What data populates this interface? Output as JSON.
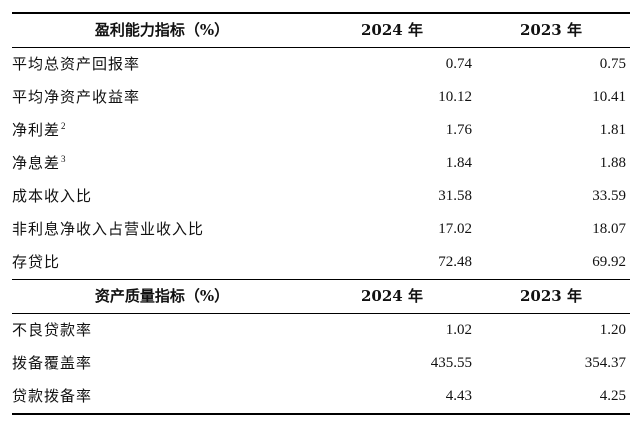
{
  "profitability": {
    "header": {
      "label": "盈利能力指标（%）",
      "year_2024": "2024 年",
      "year_2023": "2023 年"
    },
    "rows": [
      {
        "label": "平均总资产回报率",
        "footnote": "",
        "v2024": "0.74",
        "v2023": "0.75"
      },
      {
        "label": "平均净资产收益率",
        "footnote": "",
        "v2024": "10.12",
        "v2023": "10.41"
      },
      {
        "label": "净利差",
        "footnote": "2",
        "v2024": "1.76",
        "v2023": "1.81"
      },
      {
        "label": "净息差",
        "footnote": "3",
        "v2024": "1.84",
        "v2023": "1.88"
      },
      {
        "label": "成本收入比",
        "footnote": "",
        "v2024": "31.58",
        "v2023": "33.59"
      },
      {
        "label": "非利息净收入占营业收入比",
        "footnote": "",
        "v2024": "17.02",
        "v2023": "18.07"
      },
      {
        "label": "存贷比",
        "footnote": "",
        "v2024": "72.48",
        "v2023": "69.92"
      }
    ]
  },
  "asset_quality": {
    "header": {
      "label": "资产质量指标（%）",
      "year_2024": "2024 年",
      "year_2023": "2023 年"
    },
    "rows": [
      {
        "label": "不良贷款率",
        "footnote": "",
        "v2024": "1.02",
        "v2023": "1.20"
      },
      {
        "label": "拨备覆盖率",
        "footnote": "",
        "v2024": "435.55",
        "v2023": "354.37"
      },
      {
        "label": "贷款拨备率",
        "footnote": "",
        "v2024": "4.43",
        "v2023": "4.25"
      }
    ]
  }
}
